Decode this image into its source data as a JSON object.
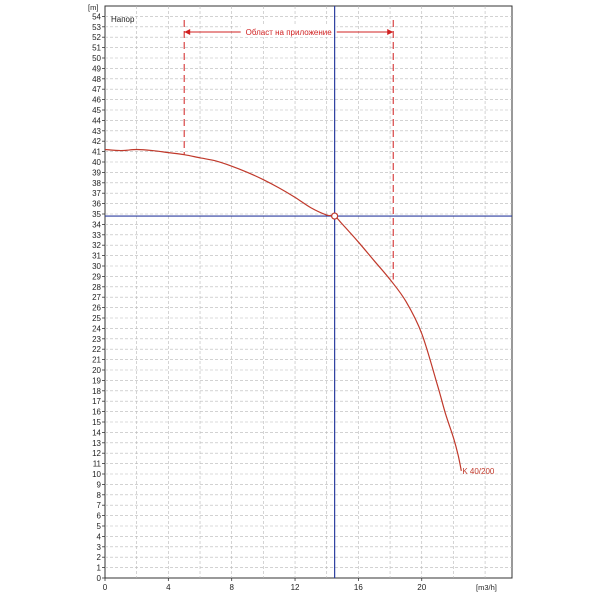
{
  "chart_data": {
    "type": "line",
    "title": "Напор",
    "y_unit": "[m]",
    "x_unit": "[m3/h]",
    "xlim": [
      0,
      25.7
    ],
    "ylim": [
      0,
      55
    ],
    "x_ticks": [
      0,
      4,
      8,
      12,
      16,
      20
    ],
    "y_ticks": [
      0,
      1,
      2,
      3,
      4,
      5,
      6,
      7,
      8,
      9,
      10,
      11,
      12,
      13,
      14,
      15,
      16,
      17,
      18,
      19,
      20,
      21,
      22,
      23,
      24,
      25,
      26,
      27,
      28,
      29,
      30,
      31,
      32,
      33,
      34,
      35,
      36,
      37,
      38,
      39,
      40,
      41,
      42,
      43,
      44,
      45,
      46,
      47,
      48,
      49,
      50,
      51,
      52,
      53,
      54
    ],
    "grid": true,
    "series": [
      {
        "name": "K 40/200",
        "color": "#c0392b",
        "x": [
          0,
          1,
          2,
          3,
          4,
          5,
          6,
          7,
          8,
          9,
          10,
          11,
          12,
          13,
          14,
          14.5,
          15,
          16,
          17,
          18,
          19,
          20,
          21,
          21.5,
          22,
          22.3,
          22.5
        ],
        "y": [
          41.2,
          41.1,
          41.2,
          41.1,
          40.9,
          40.7,
          40.4,
          40.1,
          39.6,
          39.0,
          38.3,
          37.5,
          36.6,
          35.6,
          34.9,
          34.8,
          34.0,
          32.3,
          30.5,
          28.7,
          26.6,
          23.5,
          18.5,
          15.8,
          13.5,
          11.8,
          10.3
        ]
      }
    ],
    "operating_point": {
      "x": 14.5,
      "y": 34.8,
      "color": "#2c3e9f"
    },
    "application_range": {
      "label": "Област на приложение",
      "x_min": 5,
      "x_max": 18.2,
      "y_top": 52.5,
      "color": "#d02020"
    }
  }
}
